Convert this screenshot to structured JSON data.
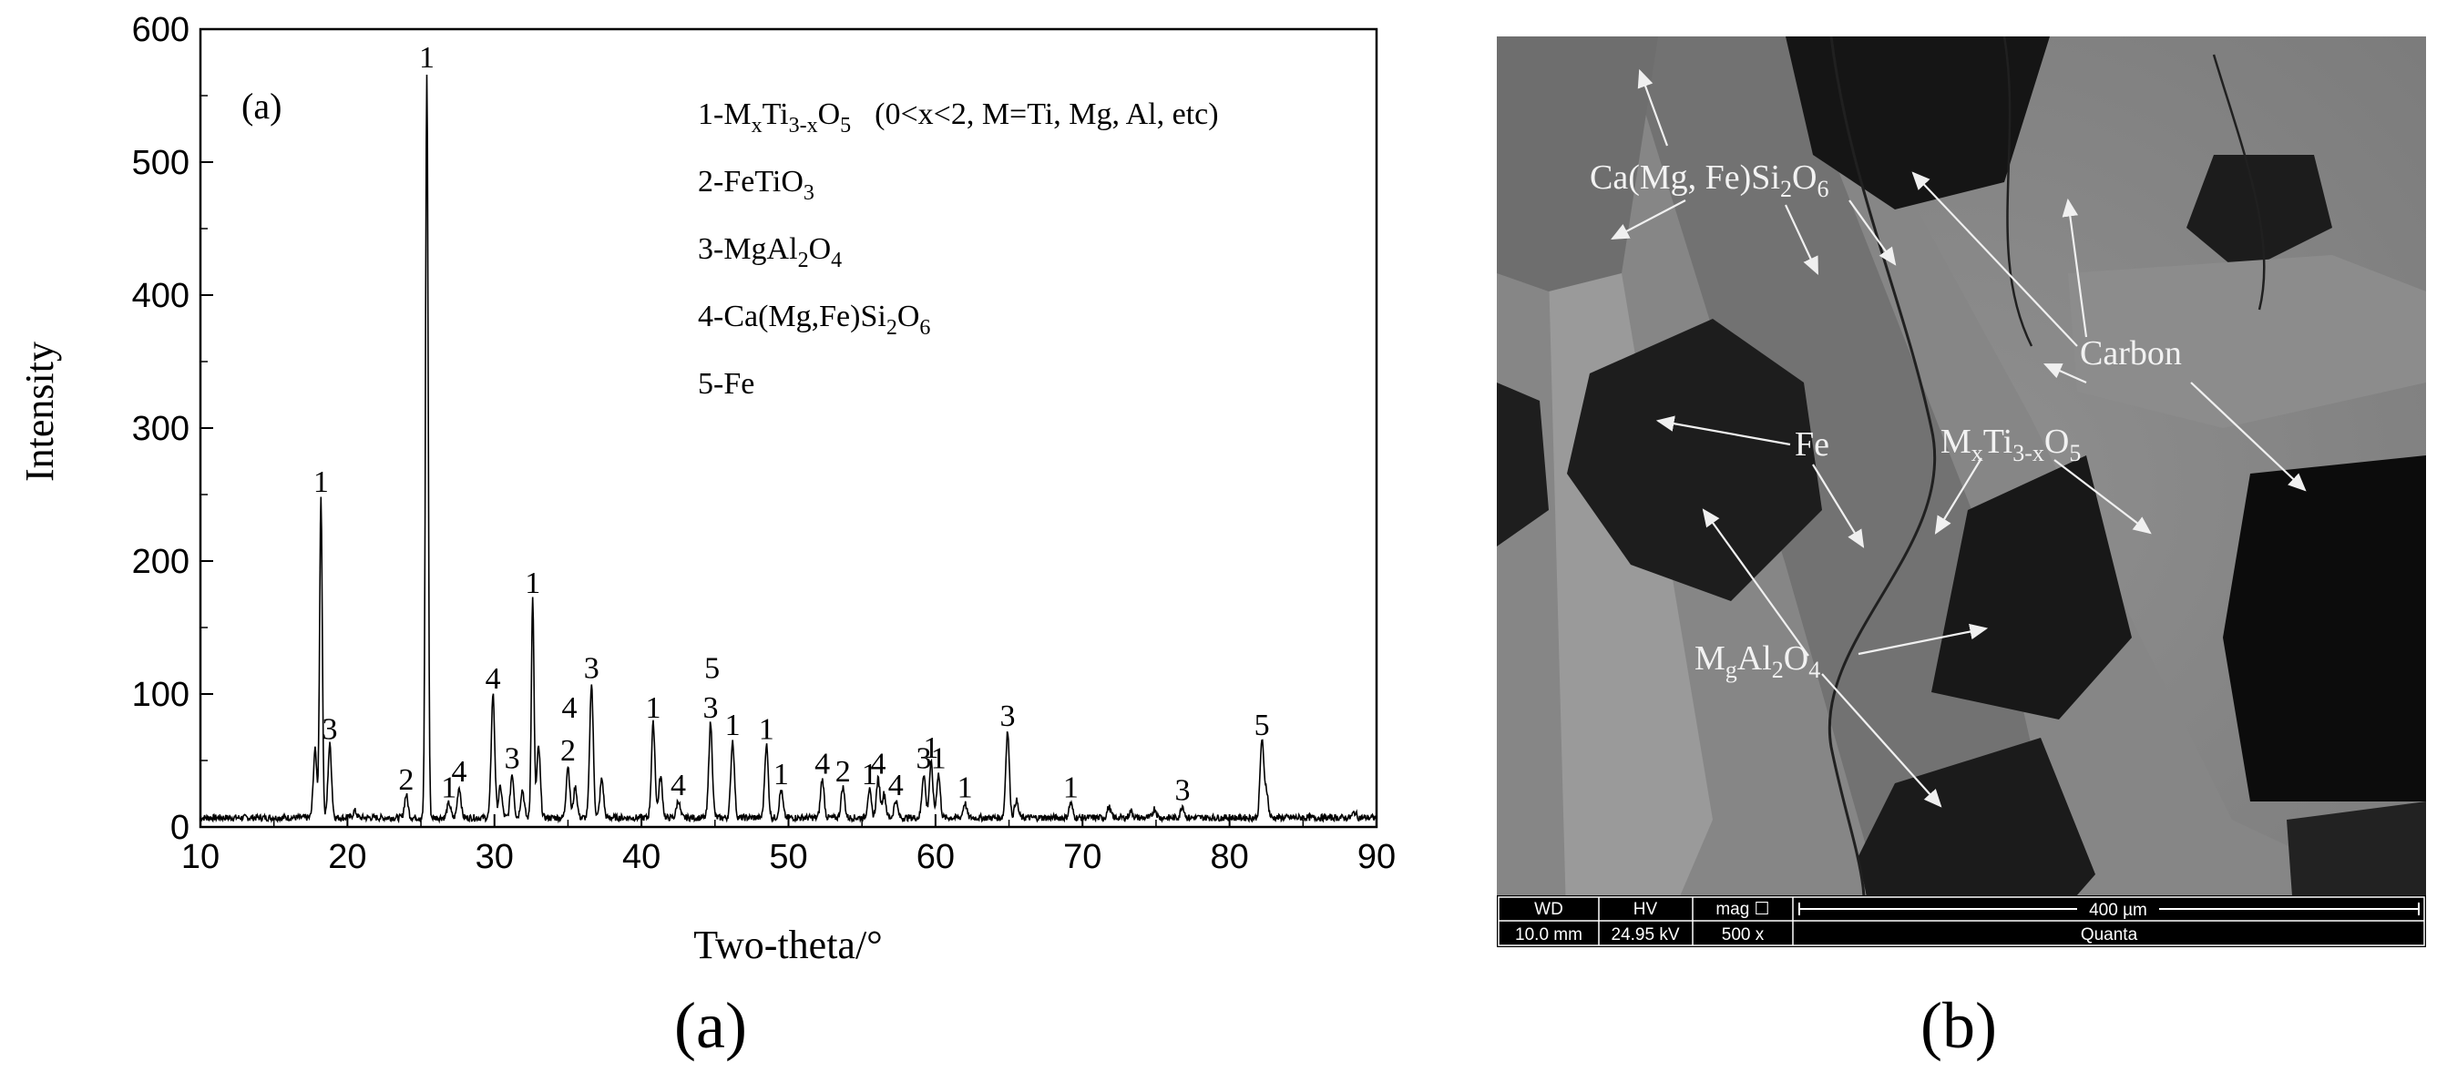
{
  "chart_data": {
    "type": "line",
    "panel_label": "(a)",
    "xlabel": "Two-theta/°",
    "ylabel": "Intensity",
    "xlim": [
      10,
      90
    ],
    "ylim": [
      0,
      600
    ],
    "x_ticks": [
      "10",
      "20",
      "30",
      "40",
      "50",
      "60",
      "70",
      "80",
      "90"
    ],
    "y_ticks": [
      "0",
      "100",
      "200",
      "300",
      "400",
      "500",
      "600"
    ],
    "legend": [
      {
        "id": "1",
        "name": "MxTi3-xO5",
        "note": "(0<x<2, M=Ti, Mg, Al, etc)"
      },
      {
        "id": "2",
        "name": "FeTiO3"
      },
      {
        "id": "3",
        "name": "MgAl2O4"
      },
      {
        "id": "4",
        "name": "Ca(Mg,Fe)Si2O6"
      },
      {
        "id": "5",
        "name": "Fe"
      }
    ],
    "baseline": 7,
    "peaks": [
      {
        "x": 17.8,
        "y": 58
      },
      {
        "x": 18.2,
        "y": 248,
        "label": "1"
      },
      {
        "x": 18.8,
        "y": 62,
        "label": "3"
      },
      {
        "x": 20.5,
        "y": 12
      },
      {
        "x": 24.0,
        "y": 24,
        "label": "2"
      },
      {
        "x": 25.4,
        "y": 567,
        "label": "1"
      },
      {
        "x": 26.9,
        "y": 18,
        "label": "1"
      },
      {
        "x": 27.6,
        "y": 30,
        "label": "4"
      },
      {
        "x": 29.9,
        "y": 100,
        "label": "4"
      },
      {
        "x": 30.4,
        "y": 30
      },
      {
        "x": 31.2,
        "y": 40,
        "label": "3"
      },
      {
        "x": 31.9,
        "y": 28
      },
      {
        "x": 32.6,
        "y": 172,
        "label": "1"
      },
      {
        "x": 33.0,
        "y": 60
      },
      {
        "x": 35.0,
        "y": 46,
        "label": "2"
      },
      {
        "x": 35.5,
        "y": 30
      },
      {
        "x": 36.6,
        "y": 108,
        "label": "3"
      },
      {
        "x": 37.3,
        "y": 36
      },
      {
        "x": 40.8,
        "y": 78,
        "label": "1"
      },
      {
        "x": 41.3,
        "y": 38
      },
      {
        "x": 42.5,
        "y": 20,
        "label": "4"
      },
      {
        "x": 44.7,
        "y": 78,
        "label": "3"
      },
      {
        "x": 46.2,
        "y": 65,
        "label": "1"
      },
      {
        "x": 48.5,
        "y": 62,
        "label": "1"
      },
      {
        "x": 49.5,
        "y": 28,
        "label": "1"
      },
      {
        "x": 52.3,
        "y": 36,
        "label": "4"
      },
      {
        "x": 53.7,
        "y": 30,
        "label": "2"
      },
      {
        "x": 55.5,
        "y": 28,
        "label": "1"
      },
      {
        "x": 56.1,
        "y": 36,
        "label": "4"
      },
      {
        "x": 56.5,
        "y": 25
      },
      {
        "x": 57.3,
        "y": 20,
        "label": "4"
      },
      {
        "x": 59.2,
        "y": 40,
        "label": "3"
      },
      {
        "x": 59.7,
        "y": 48,
        "label": "1"
      },
      {
        "x": 60.2,
        "y": 40,
        "label": "1"
      },
      {
        "x": 62.0,
        "y": 18,
        "label": "1"
      },
      {
        "x": 64.9,
        "y": 72,
        "label": "3"
      },
      {
        "x": 65.5,
        "y": 20
      },
      {
        "x": 69.2,
        "y": 18,
        "label": "1"
      },
      {
        "x": 71.8,
        "y": 15
      },
      {
        "x": 73.3,
        "y": 12
      },
      {
        "x": 74.9,
        "y": 14
      },
      {
        "x": 76.8,
        "y": 16,
        "label": "3"
      },
      {
        "x": 82.2,
        "y": 65,
        "label": "5"
      },
      {
        "x": 82.5,
        "y": 28
      },
      {
        "x": 88.5,
        "y": 11
      }
    ],
    "extra_labels": [
      {
        "x": 35.1,
        "y": 78,
        "text": "4"
      },
      {
        "x": 44.8,
        "y": 108,
        "text": "5"
      }
    ]
  },
  "sem_image": {
    "panel_label": "(b)",
    "labels": {
      "ca_mg_fe": "Ca(Mg, Fe)Si2O6",
      "carbon": "Carbon",
      "fe": "Fe",
      "mxti": "MxTi3-xO5",
      "mgal": "MgAl2O4"
    },
    "info_bar": {
      "wd_label": "WD",
      "wd_value": "10.0 mm",
      "hv_label": "HV",
      "hv_value": "24.95 kV",
      "mag_label": "mag ☐",
      "mag_value": "500 x",
      "scale": "400 µm",
      "instrument": "Quanta"
    }
  },
  "panel_labels": {
    "a": "(a)",
    "b": "(b)"
  }
}
